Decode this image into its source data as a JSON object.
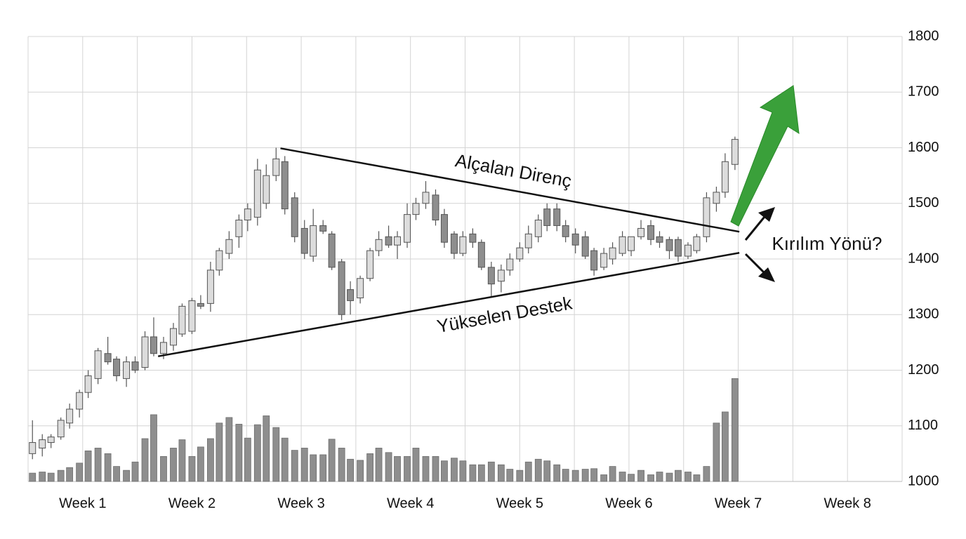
{
  "chart_data": {
    "type": "candlestick",
    "xlim": [
      0.5,
      8.5
    ],
    "xticks": [
      {
        "value": 1,
        "label": "Week 1"
      },
      {
        "value": 2,
        "label": "Week 2"
      },
      {
        "value": 3,
        "label": "Week 3"
      },
      {
        "value": 4,
        "label": "Week 4"
      },
      {
        "value": 5,
        "label": "Week 5"
      },
      {
        "value": 6,
        "label": "Week 6"
      },
      {
        "value": 7,
        "label": "Week 7"
      },
      {
        "value": 8,
        "label": "Week 8"
      }
    ],
    "ylim": [
      1000,
      1800
    ],
    "yticks": [
      1000,
      1100,
      1200,
      1300,
      1400,
      1500,
      1600,
      1700,
      1800
    ],
    "grid": true,
    "up_color": "#dcdcdc",
    "down_color": "#8e8e8e",
    "volume_color": "#8e8e8e",
    "x": [
      0.54,
      0.63,
      0.71,
      0.8,
      0.88,
      0.97,
      1.05,
      1.14,
      1.23,
      1.31,
      1.4,
      1.48,
      1.57,
      1.65,
      1.74,
      1.83,
      1.91,
      2.0,
      2.08,
      2.17,
      2.25,
      2.34,
      2.43,
      2.51,
      2.6,
      2.68,
      2.77,
      2.85,
      2.94,
      3.03,
      3.11,
      3.2,
      3.28,
      3.37,
      3.45,
      3.54,
      3.63,
      3.71,
      3.8,
      3.88,
      3.97,
      4.05,
      4.14,
      4.23,
      4.31,
      4.4,
      4.48,
      4.57,
      4.65,
      4.74,
      4.83,
      4.91,
      5.0,
      5.08,
      5.17,
      5.25,
      5.34,
      5.42,
      5.51,
      5.6,
      5.68,
      5.77,
      5.85,
      5.94,
      6.02,
      6.11,
      6.2,
      6.28,
      6.37,
      6.45,
      6.54,
      6.62,
      6.71,
      6.8,
      6.88,
      6.97
    ],
    "open": [
      1050,
      1060,
      1070,
      1080,
      1105,
      1130,
      1160,
      1185,
      1230,
      1220,
      1185,
      1215,
      1205,
      1260,
      1230,
      1245,
      1265,
      1270,
      1320,
      1320,
      1380,
      1410,
      1440,
      1470,
      1475,
      1500,
      1550,
      1575,
      1510,
      1455,
      1405,
      1460,
      1445,
      1395,
      1345,
      1330,
      1365,
      1415,
      1440,
      1425,
      1430,
      1480,
      1500,
      1515,
      1480,
      1445,
      1410,
      1445,
      1430,
      1385,
      1360,
      1380,
      1400,
      1420,
      1440,
      1490,
      1490,
      1460,
      1445,
      1440,
      1415,
      1385,
      1400,
      1410,
      1415,
      1440,
      1460,
      1440,
      1435,
      1435,
      1405,
      1415,
      1440,
      1500,
      1520,
      1570
    ],
    "high": [
      1110,
      1085,
      1085,
      1115,
      1140,
      1165,
      1200,
      1240,
      1260,
      1225,
      1225,
      1225,
      1270,
      1295,
      1260,
      1285,
      1320,
      1330,
      1335,
      1395,
      1420,
      1450,
      1480,
      1500,
      1580,
      1570,
      1600,
      1585,
      1520,
      1470,
      1490,
      1470,
      1450,
      1400,
      1360,
      1370,
      1420,
      1450,
      1460,
      1450,
      1500,
      1510,
      1540,
      1525,
      1490,
      1450,
      1450,
      1455,
      1435,
      1395,
      1390,
      1410,
      1430,
      1460,
      1480,
      1500,
      1500,
      1470,
      1455,
      1450,
      1420,
      1420,
      1430,
      1450,
      1440,
      1470,
      1470,
      1450,
      1440,
      1440,
      1430,
      1445,
      1520,
      1530,
      1590,
      1620
    ],
    "low": [
      1040,
      1045,
      1060,
      1075,
      1095,
      1115,
      1150,
      1175,
      1210,
      1180,
      1170,
      1195,
      1200,
      1225,
      1220,
      1235,
      1260,
      1265,
      1310,
      1305,
      1370,
      1400,
      1420,
      1450,
      1460,
      1490,
      1540,
      1480,
      1430,
      1400,
      1395,
      1445,
      1380,
      1290,
      1300,
      1320,
      1360,
      1405,
      1420,
      1400,
      1420,
      1470,
      1490,
      1460,
      1420,
      1400,
      1405,
      1420,
      1380,
      1330,
      1340,
      1370,
      1395,
      1410,
      1430,
      1450,
      1450,
      1430,
      1410,
      1400,
      1370,
      1380,
      1390,
      1405,
      1405,
      1435,
      1425,
      1420,
      1400,
      1395,
      1400,
      1410,
      1430,
      1485,
      1510,
      1560
    ],
    "close": [
      1070,
      1075,
      1080,
      1110,
      1130,
      1160,
      1190,
      1235,
      1215,
      1190,
      1215,
      1200,
      1260,
      1230,
      1250,
      1275,
      1315,
      1325,
      1315,
      1380,
      1415,
      1435,
      1470,
      1490,
      1560,
      1550,
      1580,
      1490,
      1440,
      1410,
      1460,
      1450,
      1385,
      1300,
      1325,
      1365,
      1415,
      1435,
      1425,
      1440,
      1480,
      1500,
      1520,
      1470,
      1430,
      1410,
      1440,
      1430,
      1385,
      1355,
      1380,
      1400,
      1420,
      1445,
      1470,
      1460,
      1460,
      1440,
      1425,
      1405,
      1380,
      1410,
      1420,
      1440,
      1440,
      1455,
      1435,
      1430,
      1415,
      1405,
      1425,
      1440,
      1510,
      1520,
      1575,
      1615
    ],
    "volume": [
      1015,
      1017,
      1015,
      1020,
      1025,
      1033,
      1055,
      1060,
      1050,
      1027,
      1020,
      1035,
      1077,
      1120,
      1045,
      1060,
      1075,
      1045,
      1062,
      1077,
      1105,
      1115,
      1103,
      1078,
      1102,
      1118,
      1097,
      1078,
      1056,
      1060,
      1048,
      1048,
      1076,
      1060,
      1040,
      1038,
      1050,
      1060,
      1052,
      1045,
      1045,
      1060,
      1045,
      1045,
      1037,
      1042,
      1037,
      1030,
      1030,
      1035,
      1030,
      1022,
      1020,
      1035,
      1040,
      1037,
      1030,
      1022,
      1020,
      1022,
      1023,
      1012,
      1027,
      1017,
      1013,
      1020,
      1012,
      1017,
      1015,
      1020,
      1017,
      1012,
      1027,
      1105,
      1125,
      1185
    ],
    "lines": [
      {
        "name": "Alçalan Direnç",
        "x": [
          2.81,
          7.01
        ],
        "values": [
          1599,
          1449
        ]
      },
      {
        "name": "Yükselen Destek",
        "x": [
          1.69,
          7.01
        ],
        "values": [
          1225,
          1411
        ]
      }
    ],
    "annotation": "Kırılım Yönü?"
  }
}
